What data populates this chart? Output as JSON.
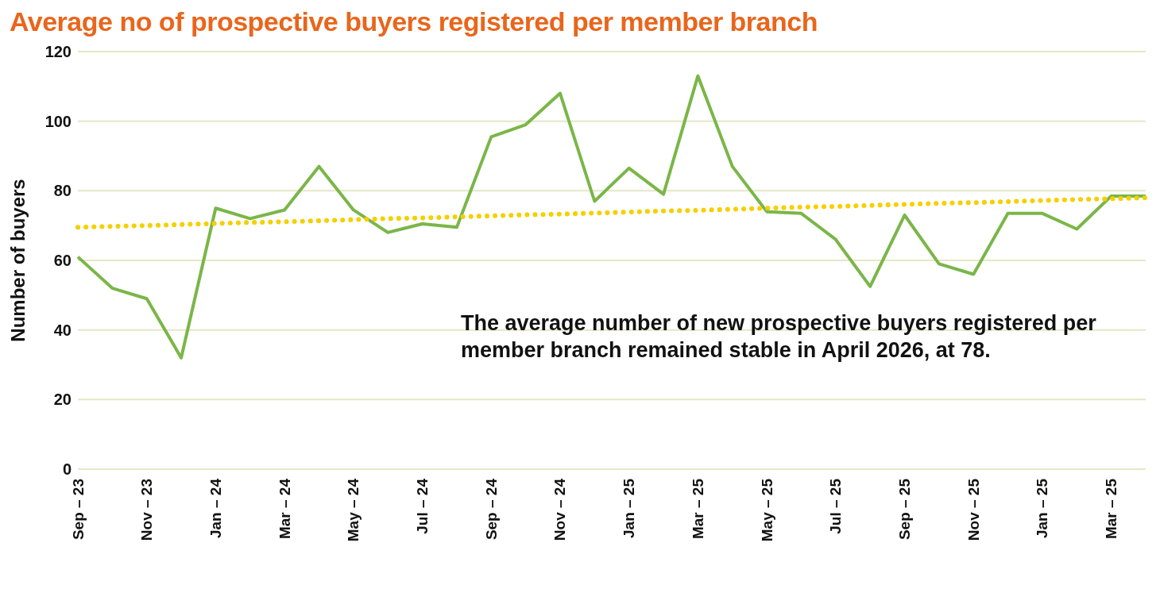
{
  "chart_data": {
    "type": "line",
    "title": "Average no of prospective buyers registered per member branch",
    "ylabel": "Number of buyers",
    "categories": [
      "Sep – 23",
      null,
      "Nov – 23",
      null,
      "Jan – 24",
      null,
      "Mar – 24",
      null,
      "May – 24",
      null,
      "Jul – 24",
      null,
      "Sep – 24",
      null,
      "Nov – 24",
      null,
      "Jan – 25",
      null,
      "Mar – 25",
      null,
      "May – 25",
      null,
      "Jul – 25",
      null,
      "Sep – 25",
      null,
      "Nov – 25",
      null,
      "Jan – 25",
      null,
      "Mar – 25",
      null
    ],
    "series": [
      {
        "color": "#7ab648",
        "line_style": "solid",
        "values": [
          61,
          52,
          49,
          32,
          75,
          72,
          74.5,
          87,
          74.5,
          68,
          70.5,
          69.5,
          95.5,
          99,
          108,
          77,
          86.5,
          79,
          113,
          87,
          74,
          73.5,
          66,
          52.5,
          73,
          59,
          56,
          73.5,
          73.5,
          69,
          78.5,
          78.5
        ]
      },
      {
        "color": "#f5d000",
        "line_style": "dotted",
        "values": [
          69.5,
          69.8,
          70,
          70.3,
          70.6,
          70.9,
          71.1,
          71.4,
          71.7,
          72,
          72.2,
          72.5,
          72.8,
          73.1,
          73.3,
          73.6,
          73.9,
          74.2,
          74.4,
          74.7,
          75,
          75.3,
          75.5,
          75.8,
          76.1,
          76.4,
          76.6,
          76.9,
          77.2,
          77.5,
          77.7,
          78
        ]
      }
    ],
    "ylim": [
      0,
      120
    ],
    "yticks": [
      0,
      20,
      40,
      60,
      80,
      100,
      120
    ],
    "grid": "y",
    "marker": "none",
    "annotations": [
      "The average number of new prospective buyers registered per member branch remained stable in April 2026, at 78."
    ]
  }
}
